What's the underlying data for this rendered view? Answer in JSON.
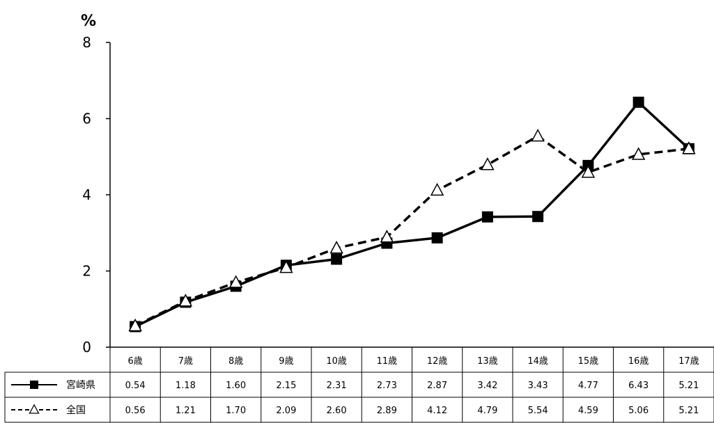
{
  "chart_data": {
    "type": "line",
    "unit_label": "%",
    "categories": [
      "6歳",
      "7歳",
      "8歳",
      "9歳",
      "10歳",
      "11歳",
      "12歳",
      "13歳",
      "14歳",
      "15歳",
      "16歳",
      "17歳"
    ],
    "ylim": [
      0,
      8
    ],
    "yticks": [
      "0",
      "2",
      "4",
      "6",
      "8"
    ],
    "series": [
      {
        "name": "宮崎県",
        "marker": "square",
        "style": "solid",
        "color": "#000000",
        "values": [
          0.54,
          1.18,
          1.6,
          2.15,
          2.31,
          2.73,
          2.87,
          3.42,
          3.43,
          4.77,
          6.43,
          5.21
        ],
        "labels": [
          "0.54",
          "1.18",
          "1.60",
          "2.15",
          "2.31",
          "2.73",
          "2.87",
          "3.42",
          "3.43",
          "4.77",
          "6.43",
          "5.21"
        ]
      },
      {
        "name": "全国",
        "marker": "triangle",
        "style": "dashed",
        "color": "#000000",
        "values": [
          0.56,
          1.21,
          1.7,
          2.09,
          2.6,
          2.89,
          4.12,
          4.79,
          5.54,
          4.59,
          5.06,
          5.21
        ],
        "labels": [
          "0.56",
          "1.21",
          "1.70",
          "2.09",
          "2.60",
          "2.89",
          "4.12",
          "4.79",
          "5.54",
          "4.59",
          "5.06",
          "5.21"
        ]
      }
    ],
    "grid": false,
    "legend": "data-table"
  }
}
